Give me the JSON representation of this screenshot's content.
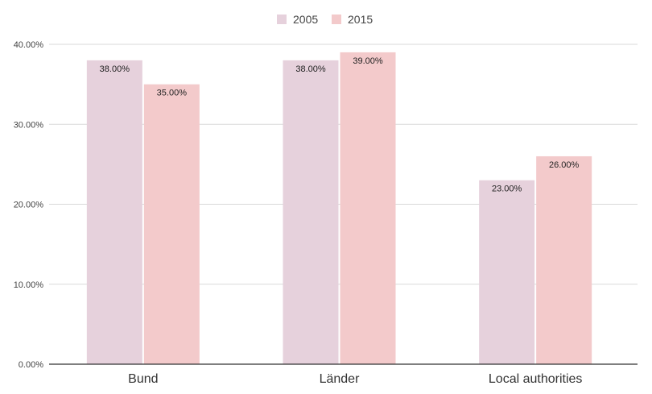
{
  "chart_data": {
    "type": "bar",
    "title": "",
    "xlabel": "",
    "ylabel": "",
    "categories": [
      "Bund",
      "Länder",
      "Local authorities"
    ],
    "series": [
      {
        "name": "2005",
        "values": [
          38.0,
          38.0,
          23.0
        ],
        "labels": [
          "38.00%",
          "38.00%",
          "23.00%"
        ],
        "color": "#e6d1dc"
      },
      {
        "name": "2015",
        "values": [
          35.0,
          39.0,
          26.0
        ],
        "labels": [
          "35.00%",
          "39.00%",
          "26.00%"
        ],
        "color": "#f3cacb"
      }
    ],
    "ylim": [
      0,
      40
    ],
    "yticks": [
      0,
      10,
      20,
      30,
      40
    ],
    "ytick_labels": [
      "0.00%",
      "10.00%",
      "20.00%",
      "30.00%",
      "40.00%"
    ],
    "grid": true,
    "legend_position": "top-center"
  }
}
